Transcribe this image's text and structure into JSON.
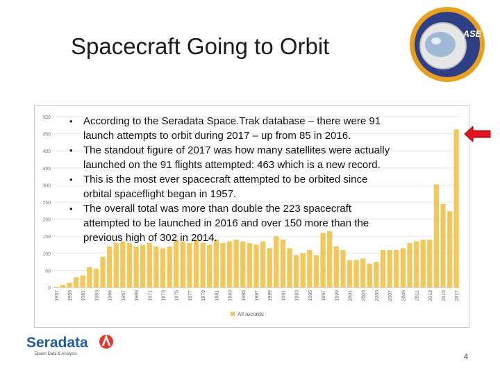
{
  "slide": {
    "title": "Spacecraft Going to Orbit",
    "page_number": "4",
    "bullets": [
      "According to the Seradata Space.Trak database – there were 91 launch attempts to orbit during 2017 – up from 85 in 2016.",
      "The standout figure of 2017 was how many satellites were actually launched on the 91 flights attempted: 463 which is a new record.",
      "This is the most ever spacecraft attempted to be orbited since orbital spaceflight began in 1957.",
      "The overall total was more than double the 223 spacecraft attempted to be launched in 2016 and over 150 more than the previous high of 302 in 2014."
    ]
  },
  "logos": {
    "top_right": "ASE",
    "bottom_left": {
      "name": "Seradata",
      "tagline": "Space Data & Analysis"
    }
  },
  "icons": {
    "pointer": "arrow-left-icon"
  },
  "colors": {
    "bar": "#f2c75c",
    "arrow": "#e0141e",
    "brand": "#1e5ea6",
    "ase_ring": "#e8a020"
  },
  "chart_data": {
    "type": "bar",
    "title": "",
    "xlabel": "",
    "ylabel": "",
    "ylim": [
      0,
      500
    ],
    "yticks": [
      0,
      50,
      100,
      150,
      200,
      250,
      300,
      350,
      400,
      450,
      500
    ],
    "grid": true,
    "legend": {
      "position": "bottom",
      "entries": [
        "All records"
      ]
    },
    "years": [
      1957,
      1958,
      1959,
      1960,
      1961,
      1962,
      1963,
      1964,
      1965,
      1966,
      1967,
      1968,
      1969,
      1970,
      1971,
      1972,
      1973,
      1974,
      1975,
      1976,
      1977,
      1978,
      1979,
      1980,
      1981,
      1982,
      1983,
      1984,
      1985,
      1986,
      1987,
      1988,
      1989,
      1990,
      1991,
      1992,
      1993,
      1994,
      1995,
      1996,
      1997,
      1998,
      1999,
      2000,
      2001,
      2002,
      2003,
      2004,
      2005,
      2006,
      2007,
      2008,
      2009,
      2010,
      2011,
      2012,
      2013,
      2014,
      2015,
      2016,
      2017
    ],
    "x_tick_labels": [
      "1957",
      "1959",
      "1961",
      "1963",
      "1965",
      "1967",
      "1969",
      "1971",
      "1973",
      "1975",
      "1977",
      "1979",
      "1981",
      "1983",
      "1985",
      "1987",
      "1989",
      "1991",
      "1993",
      "1995",
      "1997",
      "1999",
      "2001",
      "2003",
      "2005",
      "2007",
      "2009",
      "2011",
      "2013",
      "2015",
      "2017"
    ],
    "series": [
      {
        "values": [
          2,
          8,
          14,
          30,
          35,
          60,
          55,
          90,
          120,
          130,
          135,
          130,
          120,
          125,
          130,
          120,
          115,
          120,
          140,
          135,
          130,
          140,
          130,
          125,
          140,
          130,
          135,
          140,
          135,
          130,
          125,
          135,
          115,
          150,
          140,
          115,
          95,
          100,
          110,
          95,
          160,
          165,
          120,
          110,
          80,
          80,
          85,
          70,
          75,
          110,
          110,
          110,
          115,
          130,
          135,
          140,
          140,
          302,
          245,
          223,
          463
        ]
      }
    ]
  }
}
